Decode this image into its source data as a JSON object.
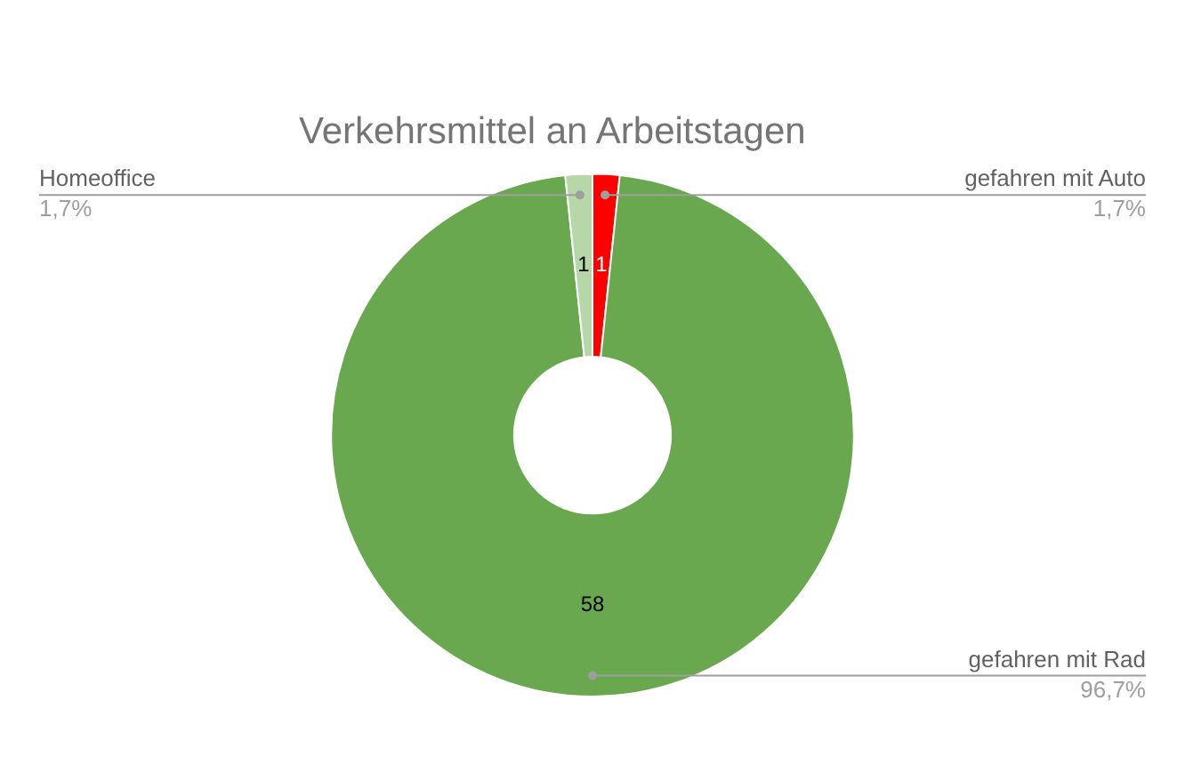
{
  "chart_data": {
    "type": "donut",
    "title": "Verkehrsmittel an Arbeitstagen",
    "categories": [
      "gefahren mit Auto",
      "gefahren mit Rad",
      "Homeoffice"
    ],
    "values": [
      1,
      58,
      1
    ],
    "colors": [
      "#ff0000",
      "#6aa84f",
      "#b6d7a8"
    ],
    "data_labels": true,
    "annotations": [
      "1,7%",
      "96,7%",
      "1,7%"
    ]
  }
}
